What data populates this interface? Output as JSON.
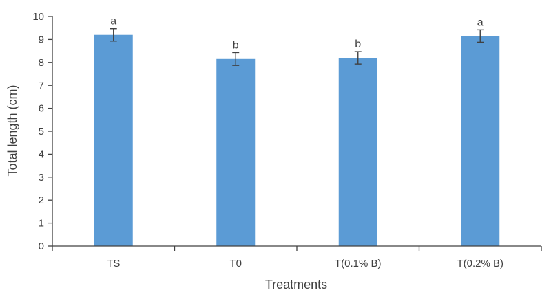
{
  "chart_data": {
    "type": "bar",
    "title": "",
    "xlabel": "Treatments",
    "ylabel": "Total length (cm)",
    "ylim": [
      0,
      10
    ],
    "yticks": [
      "0",
      "1",
      "2",
      "3",
      "4",
      "5",
      "6",
      "7",
      "8",
      "9",
      "10"
    ],
    "categories": [
      "TS",
      "T0",
      "T(0.1% B)",
      "T(0.2% B)"
    ],
    "values": [
      9.2,
      8.15,
      8.2,
      9.15
    ],
    "error": [
      0.27,
      0.28,
      0.27,
      0.27
    ],
    "significance_letters": [
      "a",
      "b",
      "b",
      "a"
    ],
    "bar_color": "#5b9bd5",
    "axis_color": "#404040",
    "errorbar_color": "#404040",
    "grid": false,
    "legend": "none"
  }
}
